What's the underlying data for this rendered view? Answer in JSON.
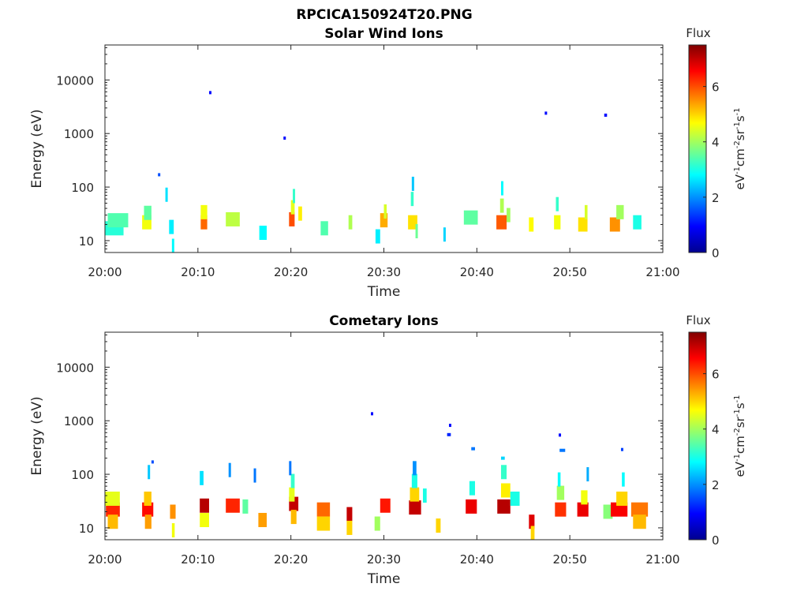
{
  "figure_title": "RPCICA150924T20.PNG",
  "colormap": [
    "#00008f",
    "#0000ff",
    "#0080ff",
    "#00ffff",
    "#80ff80",
    "#ffff00",
    "#ff8000",
    "#ff0000",
    "#800000"
  ],
  "chart_data": [
    {
      "type": "heatmap",
      "title": "Solar Wind Ions",
      "xlabel": "Time",
      "ylabel": "Energy (eV)",
      "xticks": [
        "20:00",
        "20:10",
        "20:20",
        "20:30",
        "20:40",
        "20:50",
        "21:00"
      ],
      "xlim_minutes": [
        0,
        60
      ],
      "yscale": "log",
      "ylim": [
        6,
        45000
      ],
      "yticks": [
        10,
        100,
        1000,
        10000
      ],
      "ytick_labels": [
        "10",
        "100",
        "1000",
        "10000"
      ],
      "colorbar": {
        "title": "Flux",
        "label": "eV-1cm-2sr-1s-1",
        "range": [
          0,
          7.5
        ],
        "ticks": [
          "0",
          "2",
          "4",
          "6"
        ]
      },
      "cells": [
        [
          0.0,
          2.0,
          17,
          3.1
        ],
        [
          0.3,
          2.5,
          24,
          3.4
        ],
        [
          4.0,
          5.0,
          22,
          4.6
        ],
        [
          4.2,
          5.0,
          33,
          3.5
        ],
        [
          5.7,
          5.9,
          170,
          1.5
        ],
        [
          6.5,
          6.7,
          72,
          2.6
        ],
        [
          6.9,
          7.4,
          18,
          2.7
        ],
        [
          7.2,
          7.4,
          8,
          2.8
        ],
        [
          10.3,
          11.0,
          22,
          5.8
        ],
        [
          10.3,
          11.0,
          34,
          4.6
        ],
        [
          11.2,
          11.4,
          5800,
          1.0
        ],
        [
          13.0,
          14.5,
          25,
          4.2
        ],
        [
          16.6,
          17.4,
          14,
          2.8
        ],
        [
          19.2,
          19.4,
          820,
          1.0
        ],
        [
          19.8,
          20.4,
          25,
          6.0
        ],
        [
          20.0,
          20.4,
          42,
          4.5
        ],
        [
          20.2,
          20.4,
          68,
          3.2
        ],
        [
          20.8,
          21.2,
          32,
          4.8
        ],
        [
          23.2,
          24.0,
          17,
          3.4
        ],
        [
          26.2,
          26.6,
          22,
          4.1
        ],
        [
          29.1,
          29.6,
          12,
          2.7
        ],
        [
          29.6,
          30.4,
          24,
          5.3
        ],
        [
          30.0,
          30.3,
          35,
          4.4
        ],
        [
          32.6,
          33.6,
          22,
          4.9
        ],
        [
          32.9,
          33.2,
          60,
          3.2
        ],
        [
          33.0,
          33.2,
          115,
          2.4
        ],
        [
          33.4,
          33.6,
          15,
          3.6
        ],
        [
          36.4,
          36.6,
          13,
          2.5
        ],
        [
          38.6,
          40.1,
          27,
          3.5
        ],
        [
          42.1,
          43.2,
          22,
          5.9
        ],
        [
          42.5,
          42.9,
          45,
          4.1
        ],
        [
          42.6,
          42.8,
          95,
          2.8
        ],
        [
          43.2,
          43.6,
          30,
          4.0
        ],
        [
          45.6,
          46.1,
          20,
          4.7
        ],
        [
          47.3,
          47.5,
          2400,
          1.0
        ],
        [
          48.3,
          49.0,
          22,
          4.6
        ],
        [
          48.5,
          48.8,
          48,
          3.2
        ],
        [
          50.9,
          51.9,
          20,
          4.9
        ],
        [
          51.6,
          51.9,
          34,
          4.4
        ],
        [
          53.7,
          54.0,
          2200,
          1.0
        ],
        [
          54.3,
          55.4,
          20,
          5.5
        ],
        [
          55.0,
          55.8,
          34,
          4.0
        ],
        [
          56.8,
          57.7,
          22,
          3.0
        ]
      ]
    },
    {
      "type": "heatmap",
      "title": "Cometary Ions",
      "xlabel": "Time",
      "ylabel": "Energy (eV)",
      "xticks": [
        "20:00",
        "20:10",
        "20:20",
        "20:30",
        "20:40",
        "20:50",
        "21:00"
      ],
      "xlim_minutes": [
        0,
        60
      ],
      "yscale": "log",
      "ylim": [
        6,
        45000
      ],
      "yticks": [
        10,
        100,
        1000,
        10000
      ],
      "ytick_labels": [
        "10",
        "100",
        "1000",
        "10000"
      ],
      "colorbar": {
        "title": "Flux",
        "label": "eV-1cm-2sr-1s-1",
        "range": [
          0,
          7.5
        ],
        "ticks": [
          "0",
          "2",
          "4",
          "6"
        ]
      },
      "cells": [
        [
          0.1,
          1.6,
          22,
          6.3
        ],
        [
          0.0,
          1.6,
          35,
          4.5
        ],
        [
          0.3,
          1.4,
          13,
          5.2
        ],
        [
          4.0,
          5.2,
          22,
          6.5
        ],
        [
          4.2,
          5.0,
          35,
          5.1
        ],
        [
          4.3,
          5.0,
          13,
          5.4
        ],
        [
          4.6,
          4.8,
          110,
          2.4
        ],
        [
          5.0,
          5.2,
          170,
          1.5
        ],
        [
          7.0,
          7.6,
          20,
          5.5
        ],
        [
          7.2,
          7.5,
          9,
          4.6
        ],
        [
          10.2,
          11.2,
          26,
          7.1
        ],
        [
          10.2,
          11.2,
          14,
          4.6
        ],
        [
          10.2,
          10.6,
          85,
          2.6
        ],
        [
          13.0,
          14.5,
          26,
          6.3
        ],
        [
          13.3,
          13.5,
          120,
          2.0
        ],
        [
          14.8,
          15.4,
          25,
          3.5
        ],
        [
          16.0,
          16.2,
          95,
          1.8
        ],
        [
          16.5,
          17.4,
          14,
          5.4
        ],
        [
          19.8,
          20.8,
          28,
          7.0
        ],
        [
          19.8,
          20.4,
          42,
          4.5
        ],
        [
          20.0,
          20.4,
          75,
          3.2
        ],
        [
          19.8,
          20.0,
          130,
          1.8
        ],
        [
          20.0,
          20.6,
          16,
          5.2
        ],
        [
          22.8,
          24.2,
          22,
          5.8
        ],
        [
          22.8,
          24.2,
          12,
          5.0
        ],
        [
          26.0,
          26.6,
          18,
          7.0
        ],
        [
          26.0,
          26.6,
          10,
          5.0
        ],
        [
          28.6,
          28.8,
          1350,
          1.0
        ],
        [
          29.0,
          29.6,
          12,
          4.0
        ],
        [
          29.6,
          30.7,
          26,
          6.4
        ],
        [
          32.7,
          34.0,
          24,
          7.0
        ],
        [
          32.8,
          33.8,
          42,
          5.0
        ],
        [
          33.0,
          33.6,
          75,
          3.0
        ],
        [
          33.1,
          33.5,
          130,
          2.0
        ],
        [
          34.2,
          34.6,
          40,
          3.0
        ],
        [
          35.6,
          36.1,
          11,
          5.0
        ],
        [
          36.8,
          37.2,
          550,
          1.2
        ],
        [
          37.0,
          37.2,
          820,
          1.0
        ],
        [
          38.8,
          40.0,
          25,
          6.7
        ],
        [
          39.2,
          39.8,
          55,
          3.0
        ],
        [
          39.4,
          39.8,
          300,
          1.8
        ],
        [
          42.2,
          43.6,
          25,
          7.1
        ],
        [
          42.6,
          43.6,
          50,
          4.8
        ],
        [
          42.6,
          43.2,
          110,
          3.2
        ],
        [
          42.6,
          43.0,
          200,
          2.5
        ],
        [
          43.6,
          44.6,
          35,
          3.0
        ],
        [
          45.6,
          46.2,
          13,
          6.8
        ],
        [
          45.8,
          46.2,
          8,
          5.0
        ],
        [
          48.4,
          49.6,
          22,
          6.2
        ],
        [
          48.6,
          49.4,
          45,
          4.0
        ],
        [
          48.7,
          49.0,
          80,
          2.8
        ],
        [
          48.9,
          49.5,
          280,
          1.8
        ],
        [
          48.8,
          49.0,
          540,
          1.0
        ],
        [
          50.8,
          52.0,
          22,
          6.7
        ],
        [
          51.2,
          51.9,
          37,
          4.6
        ],
        [
          51.8,
          52.0,
          100,
          2.2
        ],
        [
          53.6,
          54.6,
          20,
          3.8
        ],
        [
          54.4,
          56.2,
          22,
          6.6
        ],
        [
          55.0,
          56.2,
          35,
          5.0
        ],
        [
          55.6,
          55.9,
          80,
          2.8
        ],
        [
          55.5,
          55.7,
          290,
          1.4
        ],
        [
          56.6,
          58.4,
          22,
          5.7
        ],
        [
          56.8,
          58.2,
          13,
          5.2
        ]
      ]
    }
  ]
}
